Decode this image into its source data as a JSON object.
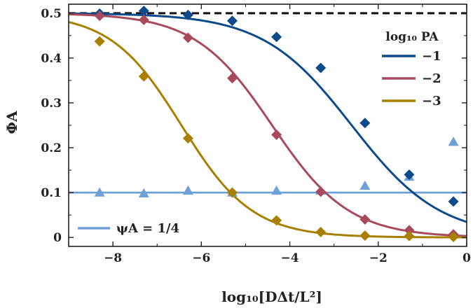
{
  "chart_data": {
    "type": "line",
    "title": "",
    "xlabel": "log₁₀[DΔt/L²]",
    "ylabel": "ΦA",
    "xlim": [
      -9,
      0
    ],
    "ylim": [
      -0.02,
      0.52
    ],
    "xticks": [
      -8,
      -6,
      -4,
      -2,
      0
    ],
    "xtick_labels": [
      "−8",
      "−6",
      "−4",
      "−2",
      "0"
    ],
    "yticks": [
      0,
      0.1,
      0.2,
      0.3,
      0.4,
      0.5
    ],
    "ytick_labels": [
      "0",
      "0.1",
      "0.2",
      "0.3",
      "0.4",
      "0.5"
    ],
    "legend_title": "log₁₀ PA",
    "legend_position": "top-right",
    "reference_line": {
      "y": 0.5,
      "style": "dashed",
      "color": "#111111"
    },
    "baseline_series": {
      "name": "ψA = 1/4",
      "legend_label": "ψA = 1/4",
      "color": "#6fa0d8",
      "line_y": 0.1,
      "marker": "triangle",
      "x": [
        -8.3,
        -7.3,
        -6.3,
        -5.3,
        -4.3,
        -3.3,
        -2.3,
        -1.3,
        -0.3
      ],
      "y": [
        0.1,
        0.098,
        0.104,
        0.1,
        0.104,
        0.104,
        0.115,
        0.135,
        0.213
      ]
    },
    "series": [
      {
        "name": "−1",
        "color": "#0d4a8c",
        "marker": "diamond",
        "curve_x0": -2.6,
        "curve_k": 1.0,
        "x": [
          -8.3,
          -7.3,
          -6.3,
          -5.3,
          -4.3,
          -3.3,
          -2.3,
          -1.3,
          -0.3
        ],
        "y": [
          0.499,
          0.505,
          0.496,
          0.483,
          0.447,
          0.378,
          0.255,
          0.14,
          0.08
        ]
      },
      {
        "name": "−2",
        "color": "#a84a5c",
        "marker": "diamond",
        "curve_x0": -4.4,
        "curve_k": 1.15,
        "x": [
          -8.3,
          -7.3,
          -6.3,
          -5.3,
          -4.3,
          -3.3,
          -2.3,
          -1.3,
          -0.3
        ],
        "y": [
          0.494,
          0.485,
          0.445,
          0.355,
          0.229,
          0.102,
          0.04,
          0.016,
          0.007
        ]
      },
      {
        "name": "−3",
        "color": "#a87f00",
        "marker": "diamond",
        "curve_x0": -6.45,
        "curve_k": 1.25,
        "x": [
          -8.3,
          -7.3,
          -6.3,
          -5.3,
          -4.3,
          -3.3,
          -2.3,
          -1.3,
          -0.3
        ],
        "y": [
          0.437,
          0.359,
          0.221,
          0.1,
          0.038,
          0.012,
          0.004,
          0.003,
          0.001
        ]
      }
    ]
  }
}
